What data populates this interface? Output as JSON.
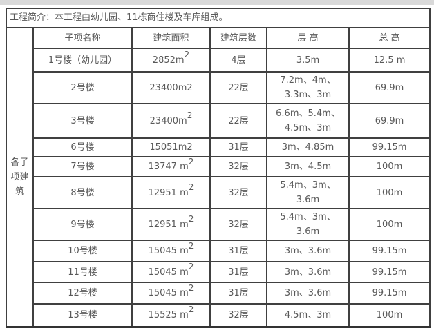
{
  "intro": "工程简介：本工程由幼儿园、11栋商住楼及车库组成。",
  "group_label": "各子项建筑",
  "table": {
    "headers": [
      "子项名称",
      "建筑面积",
      "建筑层数",
      "层 高",
      "总 高"
    ],
    "rows": [
      {
        "name": "1号楼（幼儿园）",
        "area": "2852m",
        "area_sup": "2",
        "floors": "4层",
        "floor_height": "3.5m",
        "total_height": "12.5 m"
      },
      {
        "name": "2号楼",
        "area": "23400m2",
        "area_sup": "",
        "floors": "22层",
        "floor_height": "7.2m、4m、3.3m、3m",
        "total_height": "69.9m"
      },
      {
        "name": "3号楼",
        "area": "23400m",
        "area_sup": "2",
        "floors": "22层",
        "floor_height": "6.6m、5.4m、4.5m、3m",
        "total_height": "69.9m"
      },
      {
        "name": "6号楼",
        "name_align": "left",
        "area": "15051m2",
        "area_sup": "",
        "floors": "31层",
        "floor_height": "3m、4.85m",
        "total_height": "99.15m"
      },
      {
        "name": "7号楼",
        "area": "13747 m",
        "area_sup": "2",
        "floors": "32层",
        "floor_height": "3m、4.5m",
        "total_height": "100m"
      },
      {
        "name": "8号楼",
        "area": "12951 m",
        "area_sup": "2",
        "floors": "32层",
        "floor_height": "5.4m、3m、3.6m",
        "total_height": "100m"
      },
      {
        "name": "9号楼",
        "area": "12951 m",
        "area_sup": "2",
        "floors": "32层",
        "floor_height": "5.4m、3m、3.6m",
        "total_height": "100m"
      },
      {
        "name": "10号楼",
        "area": "15045 m",
        "area_sup": "2",
        "floors": "31层",
        "floor_height": "3m、3.6m",
        "total_height": "99.15m"
      },
      {
        "name": "11号楼",
        "area": "15045 m",
        "area_sup": "2",
        "floors": "31层",
        "floor_height": "3m、3.6m",
        "total_height": "99.15m"
      },
      {
        "name": "12号楼",
        "area": "15045 m",
        "area_sup": "2",
        "floors": "31层",
        "floor_height": "3m、3.6m",
        "total_height": "99.15m"
      },
      {
        "name": "13号楼",
        "area": "15525 m",
        "area_sup": "2",
        "floors": "32层",
        "floor_height": "4.5m、3m",
        "total_height": "100m"
      }
    ]
  },
  "colors": {
    "border": "#404040",
    "text": "#595959",
    "top_strip": "#d9d9d9"
  }
}
